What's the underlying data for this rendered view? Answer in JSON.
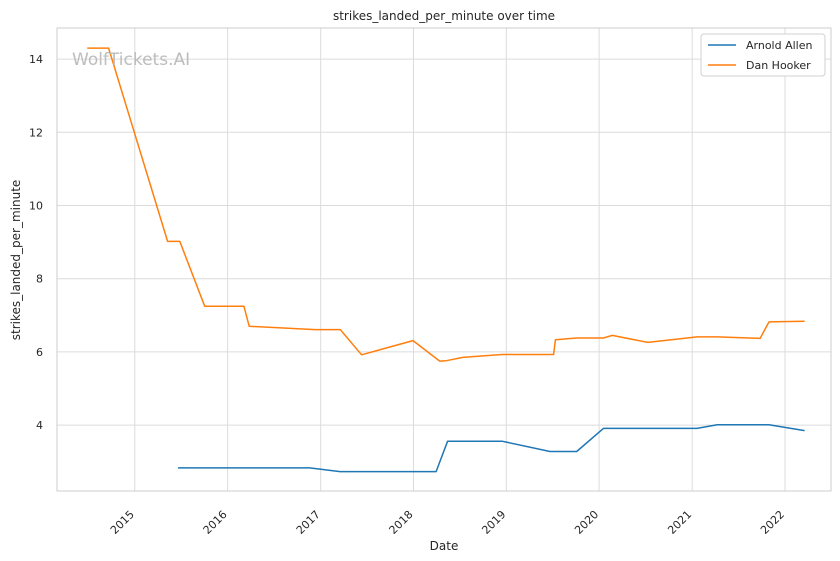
{
  "chart_data": {
    "type": "line",
    "title": "strikes_landed_per_minute over time",
    "xlabel": "Date",
    "ylabel": "strikes_landed_per_minute",
    "x_ticks": [
      "2015",
      "2016",
      "2017",
      "2018",
      "2019",
      "2020",
      "2021",
      "2022"
    ],
    "y_ticks": [
      4,
      6,
      8,
      10,
      12,
      14
    ],
    "xlim": [
      "2014-03-01",
      "2022-07-01"
    ],
    "ylim": [
      2.2,
      14.85
    ],
    "grid": true,
    "legend_position": "top-right",
    "watermark": "WolfTickets.AI",
    "series": [
      {
        "name": "Arnold Allen",
        "color": "#1f77b4",
        "points": [
          [
            "2015-06-20",
            2.83
          ],
          [
            "2016-11-19",
            2.83
          ],
          [
            "2017-03-18",
            2.73
          ],
          [
            "2018-03-31",
            2.73
          ],
          [
            "2018-05-15",
            3.56
          ],
          [
            "2018-12-15",
            3.56
          ],
          [
            "2019-06-22",
            3.28
          ],
          [
            "2019-10-05",
            3.28
          ],
          [
            "2020-01-18",
            3.91
          ],
          [
            "2021-01-20",
            3.91
          ],
          [
            "2021-04-10",
            4.01
          ],
          [
            "2021-10-30",
            4.01
          ],
          [
            "2022-03-19",
            3.85
          ]
        ]
      },
      {
        "name": "Dan Hooker",
        "color": "#ff7f0e",
        "points": [
          [
            "2014-06-28",
            14.3
          ],
          [
            "2014-09-20",
            14.3
          ],
          [
            "2015-05-10",
            9.02
          ],
          [
            "2015-06-27",
            9.02
          ],
          [
            "2015-10-03",
            7.25
          ],
          [
            "2016-03-05",
            7.25
          ],
          [
            "2016-03-26",
            6.7
          ],
          [
            "2016-12-10",
            6.61
          ],
          [
            "2017-03-19",
            6.61
          ],
          [
            "2017-06-11",
            5.92
          ],
          [
            "2017-12-30",
            6.31
          ],
          [
            "2018-04-14",
            5.75
          ],
          [
            "2018-05-10",
            5.76
          ],
          [
            "2018-07-14",
            5.85
          ],
          [
            "2018-12-15",
            5.93
          ],
          [
            "2019-07-06",
            5.93
          ],
          [
            "2019-07-13",
            6.33
          ],
          [
            "2019-10-05",
            6.38
          ],
          [
            "2020-01-18",
            6.38
          ],
          [
            "2020-02-22",
            6.45
          ],
          [
            "2020-07-11",
            6.26
          ],
          [
            "2021-01-20",
            6.41
          ],
          [
            "2021-04-10",
            6.41
          ],
          [
            "2021-09-25",
            6.37
          ],
          [
            "2021-10-30",
            6.82
          ],
          [
            "2022-03-19",
            6.84
          ]
        ]
      }
    ]
  }
}
